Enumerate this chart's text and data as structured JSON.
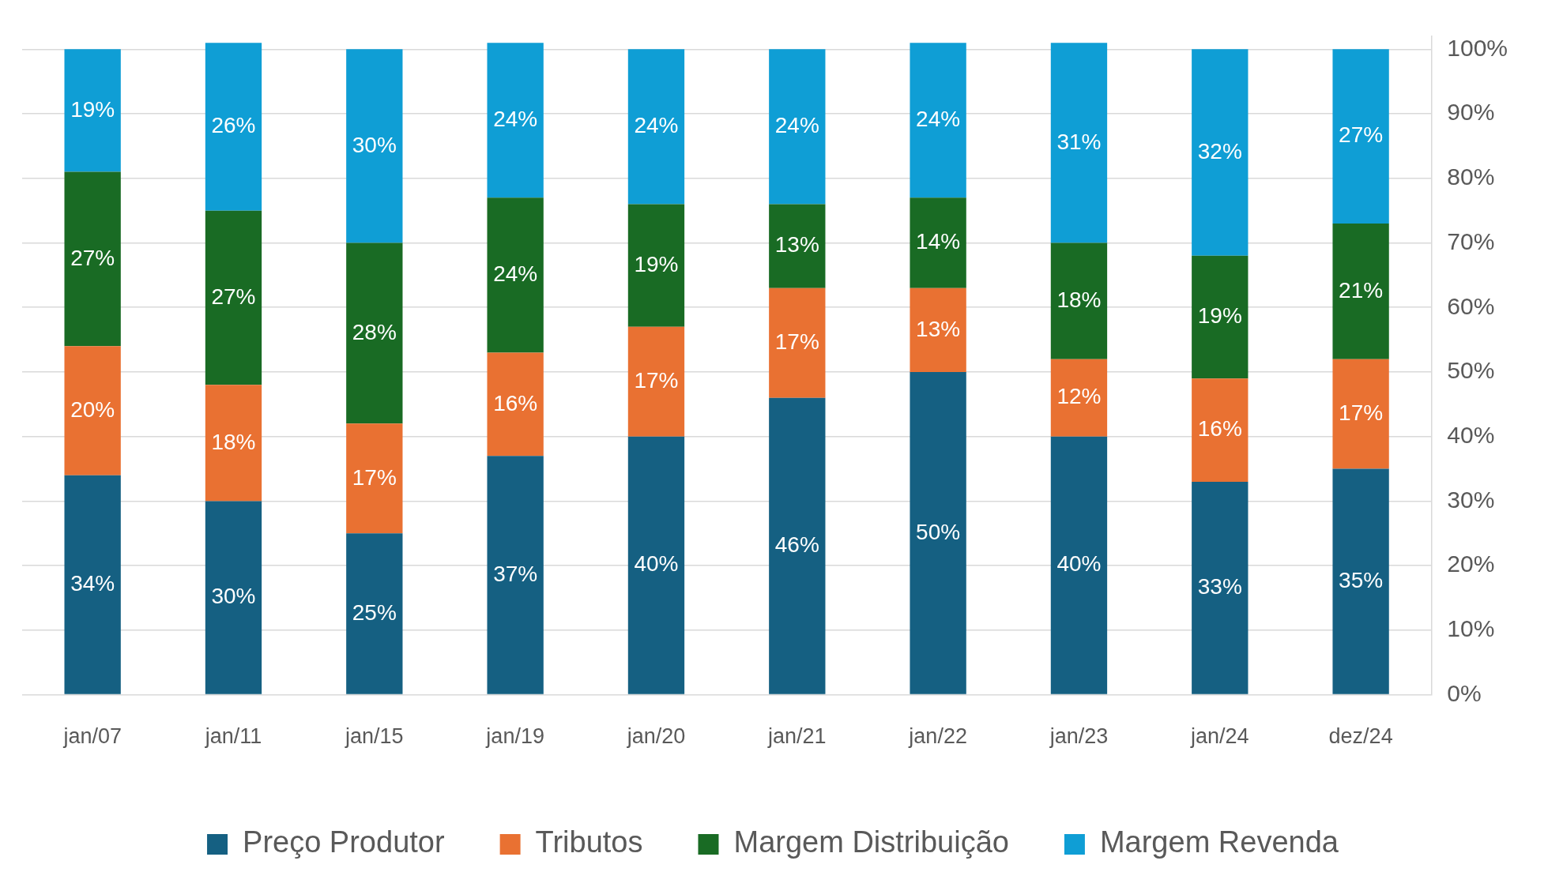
{
  "chart_data": {
    "type": "bar",
    "stacked": true,
    "categories": [
      "jan/07",
      "jan/11",
      "jan/15",
      "jan/19",
      "jan/20",
      "jan/21",
      "jan/22",
      "jan/23",
      "jan/24",
      "dez/24"
    ],
    "series": [
      {
        "name": "Preço Produtor",
        "color": "#156082",
        "values": [
          34,
          30,
          25,
          37,
          40,
          46,
          50,
          40,
          33,
          35
        ],
        "value_labels": [
          "34%",
          "30%",
          "25%",
          "37%",
          "40%",
          "46%",
          "50%",
          "40%",
          "33%",
          "35%"
        ]
      },
      {
        "name": "Tributos",
        "color": "#e97132",
        "values": [
          20,
          18,
          17,
          16,
          17,
          17,
          13,
          12,
          16,
          17
        ],
        "value_labels": [
          "20%",
          "18%",
          "17%",
          "16%",
          "17%",
          "17%",
          "13%",
          "12%",
          "16%",
          "17%"
        ]
      },
      {
        "name": "Margem Distribuição",
        "color": "#196b24",
        "values": [
          27,
          27,
          28,
          24,
          19,
          13,
          14,
          18,
          19,
          21
        ],
        "value_labels": [
          "27%",
          "27%",
          "28%",
          "24%",
          "19%",
          "13%",
          "14%",
          "18%",
          "19%",
          "21%"
        ]
      },
      {
        "name": "Margem Revenda",
        "color": "#0f9ed5",
        "values": [
          19,
          26,
          30,
          24,
          24,
          24,
          24,
          31,
          32,
          27
        ],
        "value_labels": [
          "19%",
          "26%",
          "30%",
          "24%",
          "24%",
          "24%",
          "24%",
          "31%",
          "32%",
          "27%"
        ]
      }
    ],
    "ylim": [
      0,
      102
    ],
    "yticks": [
      {
        "value": 0,
        "label": "0%"
      },
      {
        "value": 10,
        "label": "10%"
      },
      {
        "value": 20,
        "label": "20%"
      },
      {
        "value": 30,
        "label": "30%"
      },
      {
        "value": 40,
        "label": "40%"
      },
      {
        "value": 50,
        "label": "50%"
      },
      {
        "value": 60,
        "label": "60%"
      },
      {
        "value": 70,
        "label": "70%"
      },
      {
        "value": 80,
        "label": "80%"
      },
      {
        "value": 90,
        "label": "90%"
      },
      {
        "value": 100,
        "label": "100%"
      }
    ],
    "grid": "y",
    "legend": "bottom"
  }
}
